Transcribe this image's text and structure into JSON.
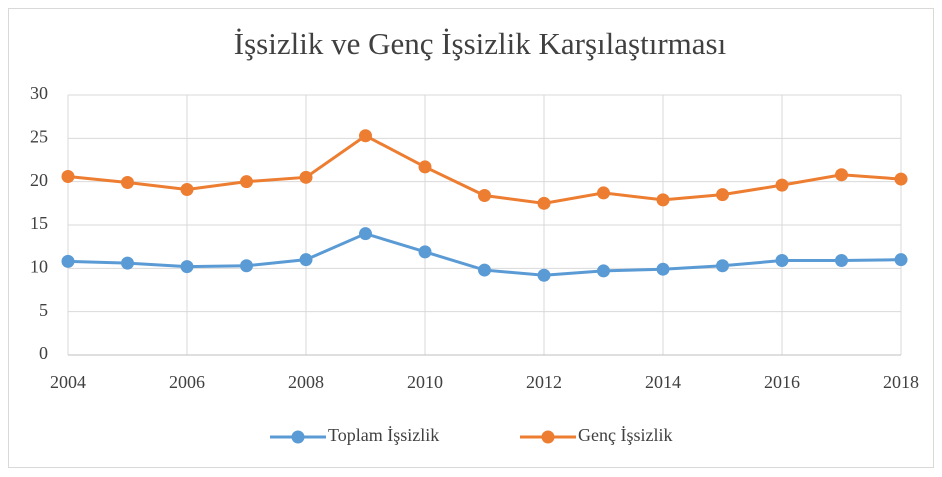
{
  "chart_data": {
    "type": "line",
    "title": "İşsizlik ve Genç İşsizlik Karşılaştırması",
    "x": [
      2004,
      2005,
      2006,
      2007,
      2008,
      2009,
      2010,
      2011,
      2012,
      2013,
      2014,
      2015,
      2016,
      2017,
      2018
    ],
    "series": [
      {
        "name": "Toplam İşsizlik",
        "color": "#5b9bd5",
        "values": [
          10.8,
          10.6,
          10.2,
          10.3,
          11.0,
          14.0,
          11.9,
          9.8,
          9.2,
          9.7,
          9.9,
          10.3,
          10.9,
          10.9,
          11.0
        ]
      },
      {
        "name": "Genç İşsizlik",
        "color": "#ed7d31",
        "values": [
          20.6,
          19.9,
          19.1,
          20.0,
          20.5,
          25.3,
          21.7,
          18.4,
          17.5,
          18.7,
          17.9,
          18.5,
          19.6,
          20.8,
          20.3
        ]
      }
    ],
    "xlim": [
      2004,
      2018
    ],
    "xticks": [
      2004,
      2006,
      2008,
      2010,
      2012,
      2014,
      2016,
      2018
    ],
    "ylim": [
      0,
      30
    ],
    "yticks": [
      0,
      5,
      10,
      15,
      20,
      25,
      30
    ],
    "grid": true,
    "legend": "bottom"
  }
}
